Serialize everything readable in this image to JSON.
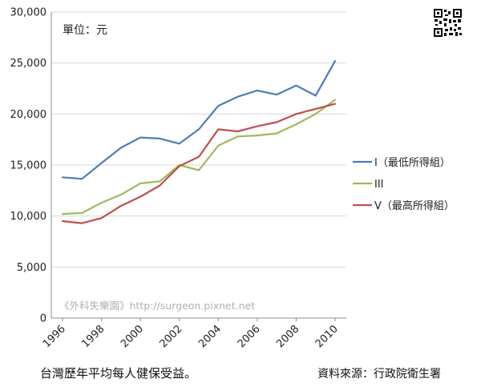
{
  "chart_data": {
    "type": "line",
    "unit_label": "單位：元",
    "x": [
      1996,
      1997,
      1998,
      1999,
      2000,
      2001,
      2002,
      2003,
      2004,
      2005,
      2006,
      2007,
      2008,
      2009,
      2010
    ],
    "xticks": [
      "1996",
      "1998",
      "2000",
      "2002",
      "2004",
      "2006",
      "2008",
      "2010"
    ],
    "yticks": [
      "0",
      "5,000",
      "10,000",
      "15,000",
      "20,000",
      "25,000",
      "30,000"
    ],
    "ylim": [
      0,
      30000
    ],
    "grid": "horizontal",
    "legend_position": "right",
    "series": [
      {
        "name": "I（最低所得組）",
        "color": "#4a7eb8",
        "values": [
          13800,
          13650,
          15200,
          16700,
          17700,
          17600,
          17100,
          18500,
          20800,
          21700,
          22300,
          21900,
          22800,
          21800,
          25200
        ]
      },
      {
        "name": "III",
        "color": "#9bbb59",
        "values": [
          10200,
          10300,
          11300,
          12100,
          13200,
          13400,
          15000,
          14500,
          16900,
          17800,
          17900,
          18100,
          19000,
          20000,
          21400
        ]
      },
      {
        "name": "V（最高所得組）",
        "color": "#c0504d",
        "values": [
          9500,
          9300,
          9800,
          11000,
          11900,
          13000,
          14900,
          15800,
          18500,
          18300,
          18800,
          19200,
          20000,
          20500,
          21000
        ]
      }
    ]
  },
  "watermark": "《外科失樂園》http://surgeon.pixnet.net",
  "caption": "台灣歷年平均每人健保受益。",
  "source": "資料來源：行政院衛生署",
  "qr_icon": "qr-code-icon"
}
